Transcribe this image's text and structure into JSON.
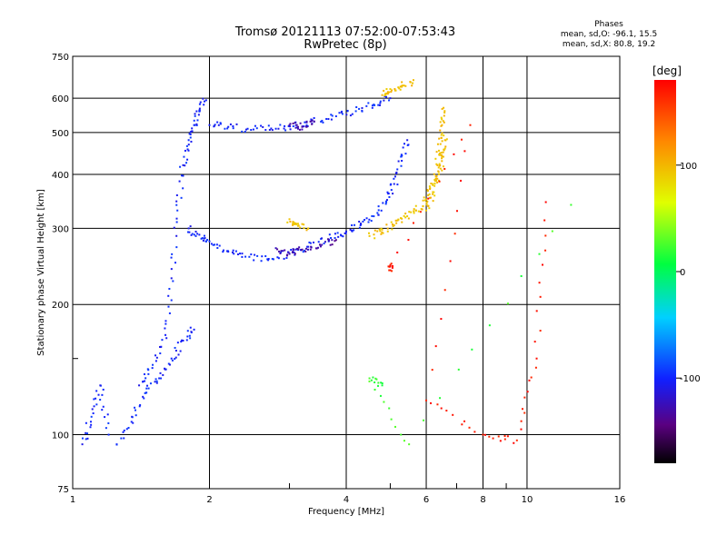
{
  "chart_data": {
    "type": "scatter",
    "title": "Tromsø 20121113 07:52:00-07:53:43",
    "subtitle": "RwPretec (8p)",
    "xlabel": "Frequency [MHz]",
    "ylabel": "Stationary phase Virtual Height [km]",
    "x_scale": "log",
    "y_scale": "log",
    "xlim": [
      1,
      16
    ],
    "ylim": [
      75,
      750
    ],
    "x_ticks": [
      1,
      2,
      4,
      6,
      8,
      10,
      16
    ],
    "y_ticks": [
      75,
      100,
      200,
      300,
      400,
      500,
      600,
      750
    ],
    "grid": true,
    "phase_stats": {
      "heading": "Phases",
      "line_o": "mean, sd,O: -96.1, 15.5",
      "line_x": "mean, sd,X: 80.8, 19.2"
    },
    "colorbar": {
      "label": "[deg]",
      "range": [
        -180,
        180
      ],
      "ticks": [
        -100,
        0,
        100
      ],
      "tick_labels": [
        "-100",
        "0",
        "100"
      ]
    },
    "series": [
      {
        "phase_deg": -100,
        "traces": [
          [
            [
              1.4,
              130
            ],
            [
              1.5,
              145
            ],
            [
              1.6,
              170
            ],
            [
              1.65,
              230
            ],
            [
              1.7,
              330
            ],
            [
              1.75,
              420
            ],
            [
              1.8,
              480
            ],
            [
              1.85,
              520
            ],
            [
              1.9,
              560
            ],
            [
              1.95,
              590
            ]
          ],
          [
            [
              1.25,
              95
            ],
            [
              1.35,
              110
            ],
            [
              1.45,
              125
            ],
            [
              1.55,
              135
            ],
            [
              1.65,
              150
            ],
            [
              1.75,
              165
            ],
            [
              1.85,
              175
            ]
          ],
          [
            [
              1.8,
              300
            ],
            [
              1.9,
              290
            ],
            [
              2.0,
              280
            ],
            [
              2.2,
              265
            ],
            [
              2.4,
              258
            ],
            [
              2.7,
              255
            ],
            [
              3.0,
              262
            ],
            [
              3.3,
              272
            ],
            [
              3.7,
              285
            ],
            [
              4.0,
              295
            ],
            [
              4.3,
              305
            ],
            [
              4.6,
              320
            ],
            [
              4.9,
              345
            ],
            [
              5.1,
              380
            ],
            [
              5.3,
              430
            ],
            [
              5.45,
              480
            ]
          ],
          [
            [
              2.0,
              520
            ],
            [
              2.2,
              515
            ],
            [
              2.5,
              508
            ],
            [
              2.8,
              510
            ],
            [
              3.1,
              520
            ],
            [
              3.4,
              530
            ],
            [
              3.8,
              545
            ],
            [
              4.2,
              560
            ],
            [
              4.6,
              580
            ],
            [
              5.0,
              600
            ]
          ],
          [
            [
              1.05,
              95
            ],
            [
              1.1,
              110
            ],
            [
              1.15,
              130
            ],
            [
              1.2,
              100
            ]
          ]
        ]
      },
      {
        "phase_deg": -130,
        "traces": [
          [
            [
              2.8,
              270
            ],
            [
              3.0,
              262
            ],
            [
              3.2,
              268
            ],
            [
              3.5,
              275
            ],
            [
              3.8,
              282
            ]
          ],
          [
            [
              3.0,
              520
            ],
            [
              3.2,
              515
            ],
            [
              3.4,
              530
            ]
          ]
        ]
      },
      {
        "phase_deg": 95,
        "traces": [
          [
            [
              4.5,
              288
            ],
            [
              4.8,
              298
            ],
            [
              5.1,
              305
            ],
            [
              5.4,
              318
            ],
            [
              5.7,
              330
            ],
            [
              6.0,
              350
            ],
            [
              6.2,
              380
            ],
            [
              6.35,
              420
            ],
            [
              6.45,
              470
            ],
            [
              6.5,
              520
            ],
            [
              6.55,
              570
            ]
          ],
          [
            [
              4.8,
              610
            ],
            [
              5.0,
              630
            ],
            [
              5.3,
              640
            ],
            [
              5.6,
              650
            ]
          ],
          [
            [
              3.0,
              315
            ],
            [
              3.1,
              308
            ],
            [
              3.3,
              300
            ]
          ],
          [
            [
              6.0,
              330
            ],
            [
              6.2,
              360
            ],
            [
              6.4,
              400
            ],
            [
              6.5,
              440
            ],
            [
              6.6,
              480
            ]
          ]
        ]
      },
      {
        "phase_deg": 170,
        "traces": [
          [
            [
              5.0,
              240
            ],
            [
              5.0,
              245
            ],
            [
              7.5,
              520
            ],
            [
              6.0,
              120
            ],
            [
              8.0,
              100
            ],
            [
              9.5,
              97
            ],
            [
              10.5,
              150
            ],
            [
              11.0,
              345
            ]
          ]
        ]
      },
      {
        "phase_deg": 20,
        "traces": [
          [
            [
              12.5,
              340
            ],
            [
              5.5,
              95
            ],
            [
              4.5,
              135
            ],
            [
              4.8,
              130
            ]
          ]
        ]
      }
    ]
  }
}
